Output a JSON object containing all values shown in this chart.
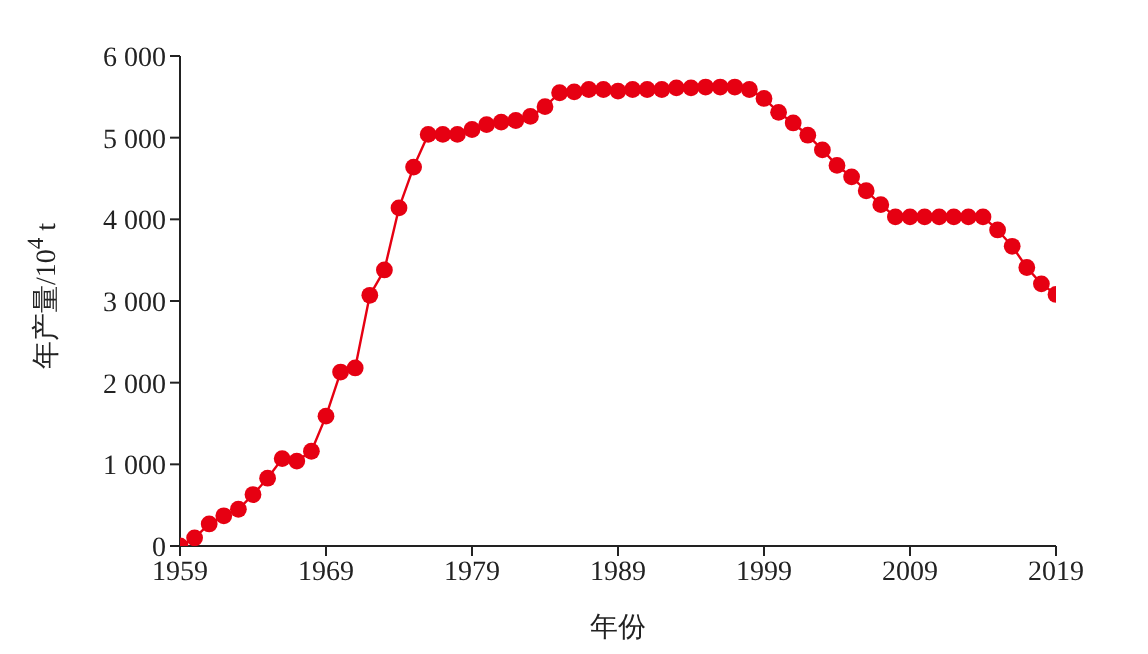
{
  "chart_data": {
    "type": "line",
    "xlabel": "年份",
    "ylabel": "年产量/10$^{4}$ t",
    "x": [
      1959,
      1960,
      1961,
      1962,
      1963,
      1964,
      1965,
      1966,
      1967,
      1968,
      1969,
      1970,
      1971,
      1972,
      1973,
      1974,
      1975,
      1976,
      1977,
      1978,
      1979,
      1980,
      1981,
      1982,
      1983,
      1984,
      1985,
      1986,
      1987,
      1988,
      1989,
      1990,
      1991,
      1992,
      1993,
      1994,
      1995,
      1996,
      1997,
      1998,
      1999,
      2000,
      2001,
      2002,
      2003,
      2004,
      2005,
      2006,
      2007,
      2008,
      2009,
      2010,
      2011,
      2012,
      2013,
      2014,
      2015,
      2016,
      2017,
      2018,
      2019
    ],
    "series": [
      {
        "color": "#e60012",
        "values": [
          0,
          100,
          270,
          370,
          450,
          630,
          830,
          1070,
          1040,
          1160,
          1590,
          2130,
          2180,
          3070,
          3380,
          4140,
          4640,
          5040,
          5040,
          5040,
          5100,
          5160,
          5190,
          5210,
          5260,
          5380,
          5550,
          5560,
          5590,
          5590,
          5570,
          5590,
          5590,
          5590,
          5610,
          5610,
          5620,
          5620,
          5620,
          5590,
          5480,
          5310,
          5180,
          5030,
          4850,
          4660,
          4520,
          4350,
          4180,
          4030,
          4030,
          4030,
          4030,
          4030,
          4030,
          4030,
          3870,
          3670,
          3410,
          3210,
          3080
        ]
      }
    ],
    "xlim": [
      1959,
      2019
    ],
    "xticks": [
      1959,
      1969,
      1979,
      1989,
      1999,
      2009,
      2019
    ],
    "ylim": [
      0,
      6000
    ],
    "yticks": [
      0,
      {
        "value": 1000,
        "label": "1 000"
      },
      {
        "value": 2000,
        "label": "2 000"
      },
      {
        "value": 3000,
        "label": "3 000"
      },
      {
        "value": 4000,
        "label": "4 000"
      },
      {
        "value": 5000,
        "label": "5 000"
      },
      {
        "value": 6000,
        "label": "6 000"
      }
    ],
    "marker": "circle",
    "line_style": "solid",
    "grid": false,
    "legend": false
  }
}
